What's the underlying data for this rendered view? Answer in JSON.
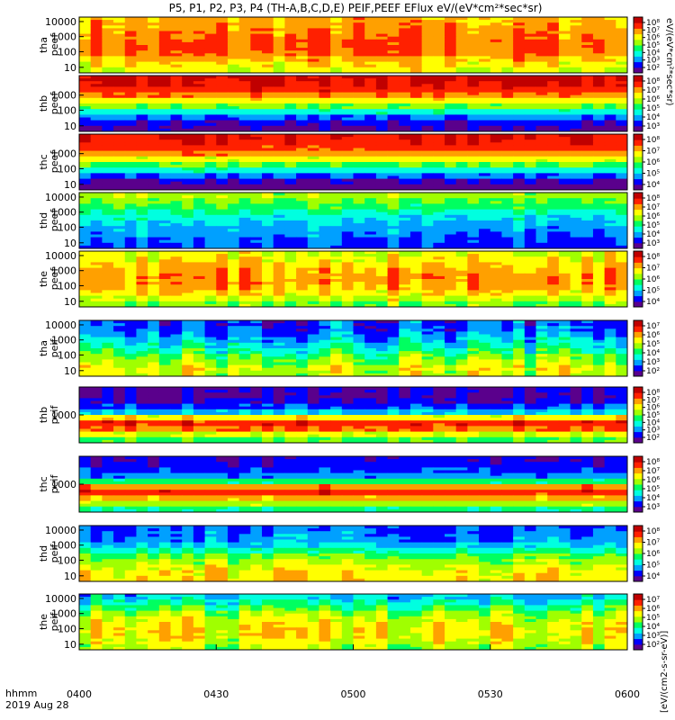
{
  "title": "P5, P1, P2, P3, P4 (TH-A,B,C,D,E) PEIF,PEEF EFlux eV/(eV*cm²*sec*sr)",
  "time_axis": {
    "ticks": [
      "0400",
      "0430",
      "0500",
      "0530",
      "0600"
    ],
    "label_units": "hhmm",
    "label_date": "2019 Aug 28"
  },
  "colorbar_labels": {
    "top": "eV/(eV*cm²*sec*sr)",
    "bottom": "[eV/(cm2-s-sr-eV)]"
  },
  "colormap": [
    "#5a008c",
    "#0000ff",
    "#00a0ff",
    "#00ffe0",
    "#00ff60",
    "#a0ff00",
    "#ffff00",
    "#ffa000",
    "#ff2000",
    "#c00000"
  ],
  "chart_data": {
    "type": "heatmap",
    "x_range": [
      "0400",
      "0600"
    ],
    "panels": [
      {
        "id": "tha-peef",
        "label1": "tha",
        "label2": "peef",
        "y_ticks": [
          "10000",
          "1000",
          "100",
          "10"
        ],
        "log_y": true,
        "colorbar_ticks": [
          "10⁸",
          "10⁷",
          "10⁶",
          "10⁵",
          "10⁴",
          "10³",
          "10²"
        ],
        "profile": [
          0.72,
          0.74,
          0.76,
          0.78,
          0.8,
          0.8,
          0.78,
          0.72,
          0.66,
          0.62
        ],
        "variation": 0.08
      },
      {
        "id": "thb-peef",
        "label1": "thb",
        "label2": "peef",
        "y_ticks": [
          "1000",
          "100",
          "10"
        ],
        "log_y": true,
        "colorbar_ticks": [
          "10⁸",
          "10⁷",
          "10⁶",
          "10⁵",
          "10⁴",
          "10³"
        ],
        "profile": [
          0.92,
          0.9,
          0.86,
          0.78,
          0.66,
          0.52,
          0.36,
          0.22,
          0.12,
          0.08
        ],
        "variation": 0.04
      },
      {
        "id": "thc-peef",
        "label1": "thc",
        "label2": "peef",
        "y_ticks": [
          "1000",
          "100",
          "10"
        ],
        "log_y": true,
        "colorbar_ticks": [
          "10⁸",
          "10⁷",
          "10⁶",
          "10⁵",
          "10⁴"
        ],
        "profile": [
          0.9,
          0.88,
          0.84,
          0.76,
          0.64,
          0.5,
          0.36,
          0.22,
          0.1,
          0.0
        ],
        "variation": 0.04
      },
      {
        "id": "thd-peef",
        "label1": "thd",
        "label2": "peef",
        "y_ticks": [
          "10000",
          "1000",
          "100",
          "10"
        ],
        "log_y": true,
        "colorbar_ticks": [
          "10⁸",
          "10⁷",
          "10⁶",
          "10⁵",
          "10⁴",
          "10³"
        ],
        "profile": [
          0.56,
          0.52,
          0.46,
          0.4,
          0.34,
          0.3,
          0.26,
          0.24,
          0.2,
          0.18
        ],
        "variation": 0.06
      },
      {
        "id": "the-peef",
        "label1": "the",
        "label2": "peef",
        "y_ticks": [
          "10000",
          "1000",
          "100",
          "10"
        ],
        "log_y": true,
        "colorbar_ticks": [
          "10⁸",
          "10⁷",
          "10⁶",
          "10⁵",
          "10⁴"
        ],
        "profile": [
          0.62,
          0.66,
          0.7,
          0.74,
          0.76,
          0.76,
          0.74,
          0.68,
          0.6,
          0.52
        ],
        "variation": 0.08
      },
      {
        "id": "tha-peif",
        "label1": "tha",
        "label2": "peif",
        "y_ticks": [
          "10000",
          "1000",
          "100",
          "10"
        ],
        "log_y": true,
        "colorbar_ticks": [
          "10⁷",
          "10⁶",
          "10⁵",
          "10⁴",
          "10³",
          "10²"
        ],
        "profile": [
          0.18,
          0.2,
          0.24,
          0.3,
          0.36,
          0.42,
          0.5,
          0.56,
          0.62,
          0.6
        ],
        "variation": 0.12
      },
      {
        "id": "thb-peif",
        "label1": "thb",
        "label2": "peif",
        "y_ticks": [
          "1000"
        ],
        "log_y": true,
        "colorbar_ticks": [
          "10⁸",
          "10⁷",
          "10⁶",
          "10⁵",
          "10⁴",
          "10³",
          "10²"
        ],
        "profile": [
          0.1,
          0.08,
          0.12,
          0.18,
          0.3,
          0.66,
          0.86,
          0.8,
          0.62,
          0.48
        ],
        "variation": 0.06
      },
      {
        "id": "thc-peif",
        "label1": "thc",
        "label2": "peif",
        "y_ticks": [
          "1000"
        ],
        "log_y": true,
        "colorbar_ticks": [
          "10⁸",
          "10⁷",
          "10⁶",
          "10⁵",
          "10⁴",
          "10³"
        ],
        "profile": [
          0.12,
          0.14,
          0.18,
          0.24,
          0.44,
          0.76,
          0.86,
          0.74,
          0.56,
          0.42
        ],
        "variation": 0.05
      },
      {
        "id": "thd-peif",
        "label1": "thd",
        "label2": "peif",
        "y_ticks": [
          "10000",
          "1000",
          "100",
          "10"
        ],
        "log_y": true,
        "colorbar_ticks": [
          "10⁸",
          "10⁷",
          "10⁶",
          "10⁵",
          "10⁴"
        ],
        "profile": [
          0.2,
          0.22,
          0.24,
          0.3,
          0.4,
          0.5,
          0.56,
          0.62,
          0.66,
          0.68
        ],
        "variation": 0.08
      },
      {
        "id": "the-peif",
        "label1": "the",
        "label2": "peif",
        "y_ticks": [
          "10000",
          "1000",
          "100",
          "10"
        ],
        "log_y": true,
        "colorbar_ticks": [
          "10⁷",
          "10⁶",
          "10⁵",
          "10⁴",
          "10³",
          "10²"
        ],
        "profile": [
          0.3,
          0.38,
          0.46,
          0.54,
          0.6,
          0.64,
          0.66,
          0.66,
          0.62,
          0.58
        ],
        "variation": 0.1
      }
    ]
  }
}
